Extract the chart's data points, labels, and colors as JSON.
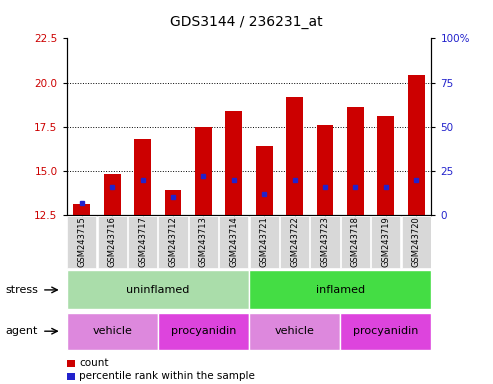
{
  "title": "GDS3144 / 236231_at",
  "samples": [
    "GSM243715",
    "GSM243716",
    "GSM243717",
    "GSM243712",
    "GSM243713",
    "GSM243714",
    "GSM243721",
    "GSM243722",
    "GSM243723",
    "GSM243718",
    "GSM243719",
    "GSM243720"
  ],
  "count_values": [
    13.1,
    14.8,
    16.8,
    13.9,
    17.5,
    18.4,
    16.4,
    19.2,
    17.6,
    18.6,
    18.1,
    20.4
  ],
  "percentile_values": [
    7,
    16,
    20,
    10,
    22,
    20,
    12,
    20,
    16,
    16,
    16,
    20
  ],
  "y_min": 12.5,
  "y_max": 22.5,
  "y_ticks_left": [
    12.5,
    15.0,
    17.5,
    20.0,
    22.5
  ],
  "y_ticks_right_vals": [
    0,
    25,
    50,
    75,
    100
  ],
  "dotted_lines": [
    15.0,
    17.5,
    20.0
  ],
  "bar_color": "#cc0000",
  "blue_color": "#2222cc",
  "bar_width": 0.55,
  "stress_groups": [
    {
      "label": "uninflamed",
      "start": 0,
      "end": 6,
      "color": "#aaddaa"
    },
    {
      "label": "inflamed",
      "start": 6,
      "end": 12,
      "color": "#44dd44"
    }
  ],
  "agent_groups": [
    {
      "label": "vehicle",
      "start": 0,
      "end": 3,
      "color": "#dd88dd"
    },
    {
      "label": "procyanidin",
      "start": 3,
      "end": 6,
      "color": "#dd44dd"
    },
    {
      "label": "vehicle",
      "start": 6,
      "end": 9,
      "color": "#dd88dd"
    },
    {
      "label": "procyanidin",
      "start": 9,
      "end": 12,
      "color": "#dd44dd"
    }
  ],
  "stress_label": "stress",
  "agent_label": "agent",
  "legend_count": "count",
  "legend_percentile": "percentile rank within the sample",
  "left_label_color": "#cc0000",
  "right_label_color": "#2222cc",
  "title_fontsize": 10,
  "tick_fontsize": 7.5,
  "sample_fontsize": 6,
  "label_fontsize": 8,
  "group_fontsize": 8
}
